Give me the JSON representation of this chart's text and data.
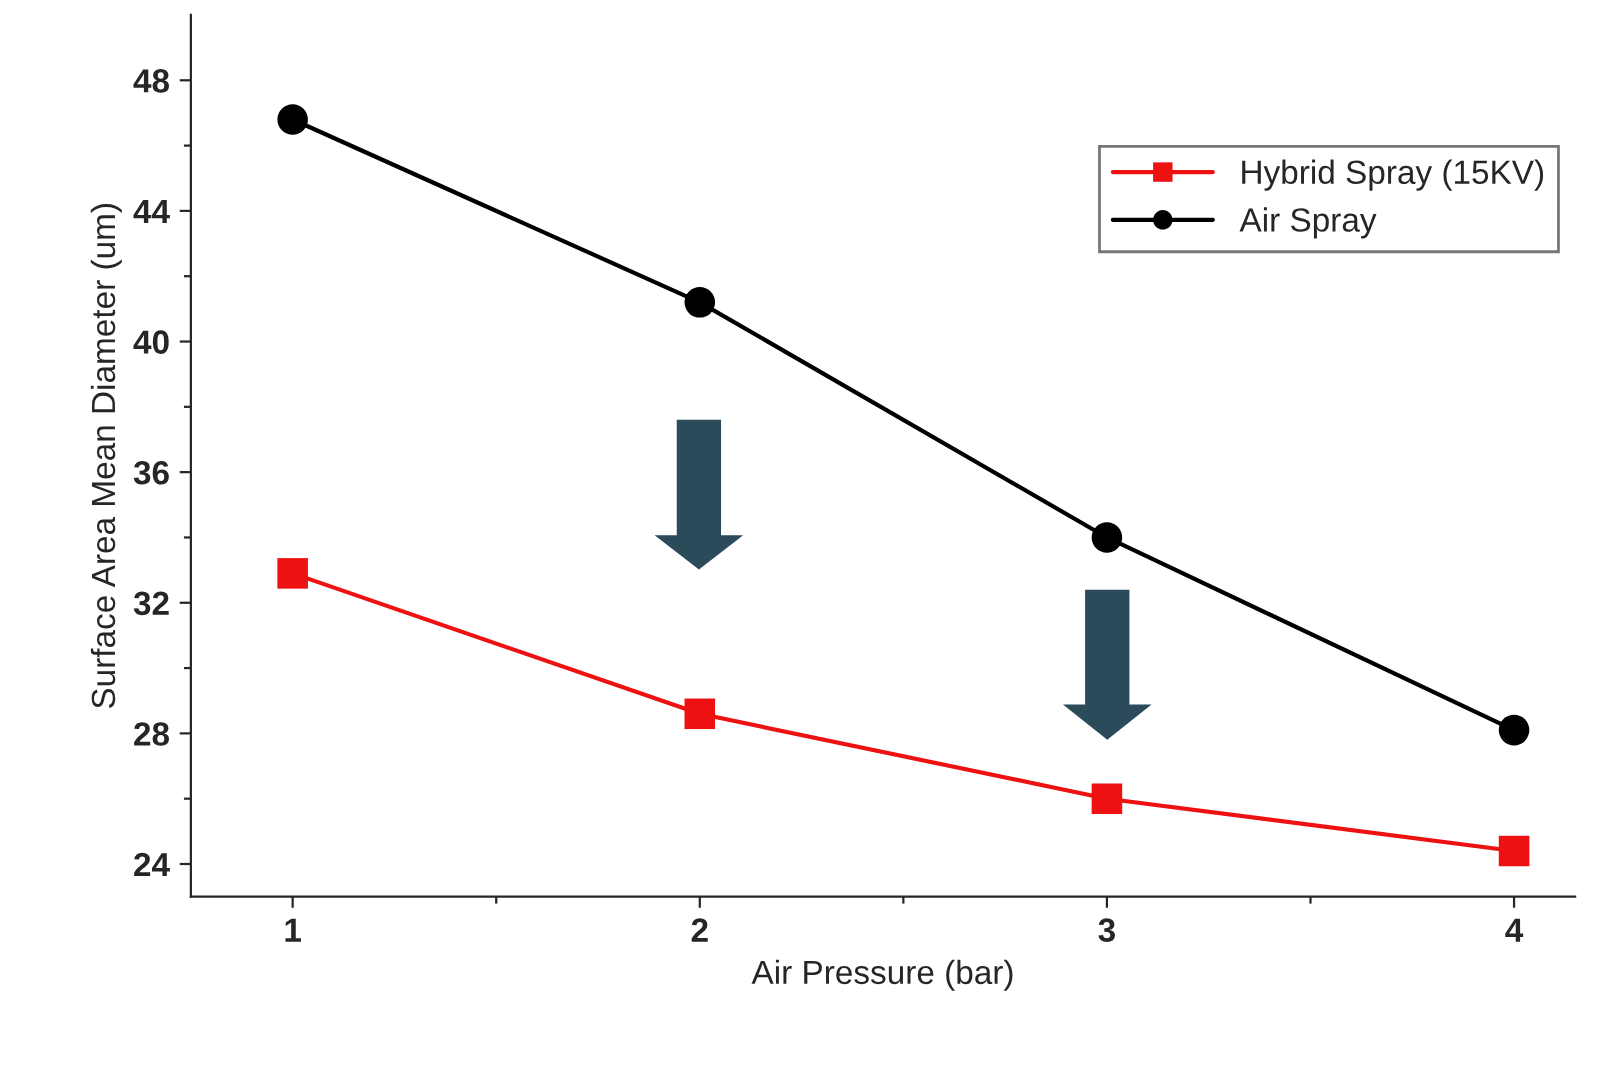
{
  "chart_data": {
    "type": "line",
    "xlabel": "Air Pressure (bar)",
    "ylabel": "Surface Area Mean Diameter (um)",
    "x": [
      1,
      2,
      3,
      4
    ],
    "series": [
      {
        "name": "Hybrid Spray (15KV)",
        "color": "#ee1111",
        "marker": "square",
        "values": [
          32.9,
          28.6,
          26.0,
          24.4
        ]
      },
      {
        "name": "Air Spray",
        "color": "#000000",
        "marker": "circle",
        "values": [
          46.8,
          41.2,
          34.0,
          28.1
        ]
      }
    ],
    "xlim": [
      0.75,
      4.15
    ],
    "ylim": [
      23,
      50
    ],
    "xticks": [
      1,
      {
        "value": 1.5,
        "label": null
      },
      2,
      {
        "value": 2.5,
        "label": null
      },
      3,
      {
        "value": 3.5,
        "label": null
      },
      4
    ],
    "yticks": [
      24,
      {
        "value": 26,
        "label": null
      },
      28,
      {
        "value": 30,
        "label": null
      },
      32,
      {
        "value": 34,
        "label": null
      },
      36,
      {
        "value": 38,
        "label": null
      },
      40,
      {
        "value": 42,
        "label": null
      },
      44,
      {
        "value": 46,
        "label": null
      },
      48
    ],
    "grid": false,
    "legend": "top right",
    "line_style": "solid"
  }
}
